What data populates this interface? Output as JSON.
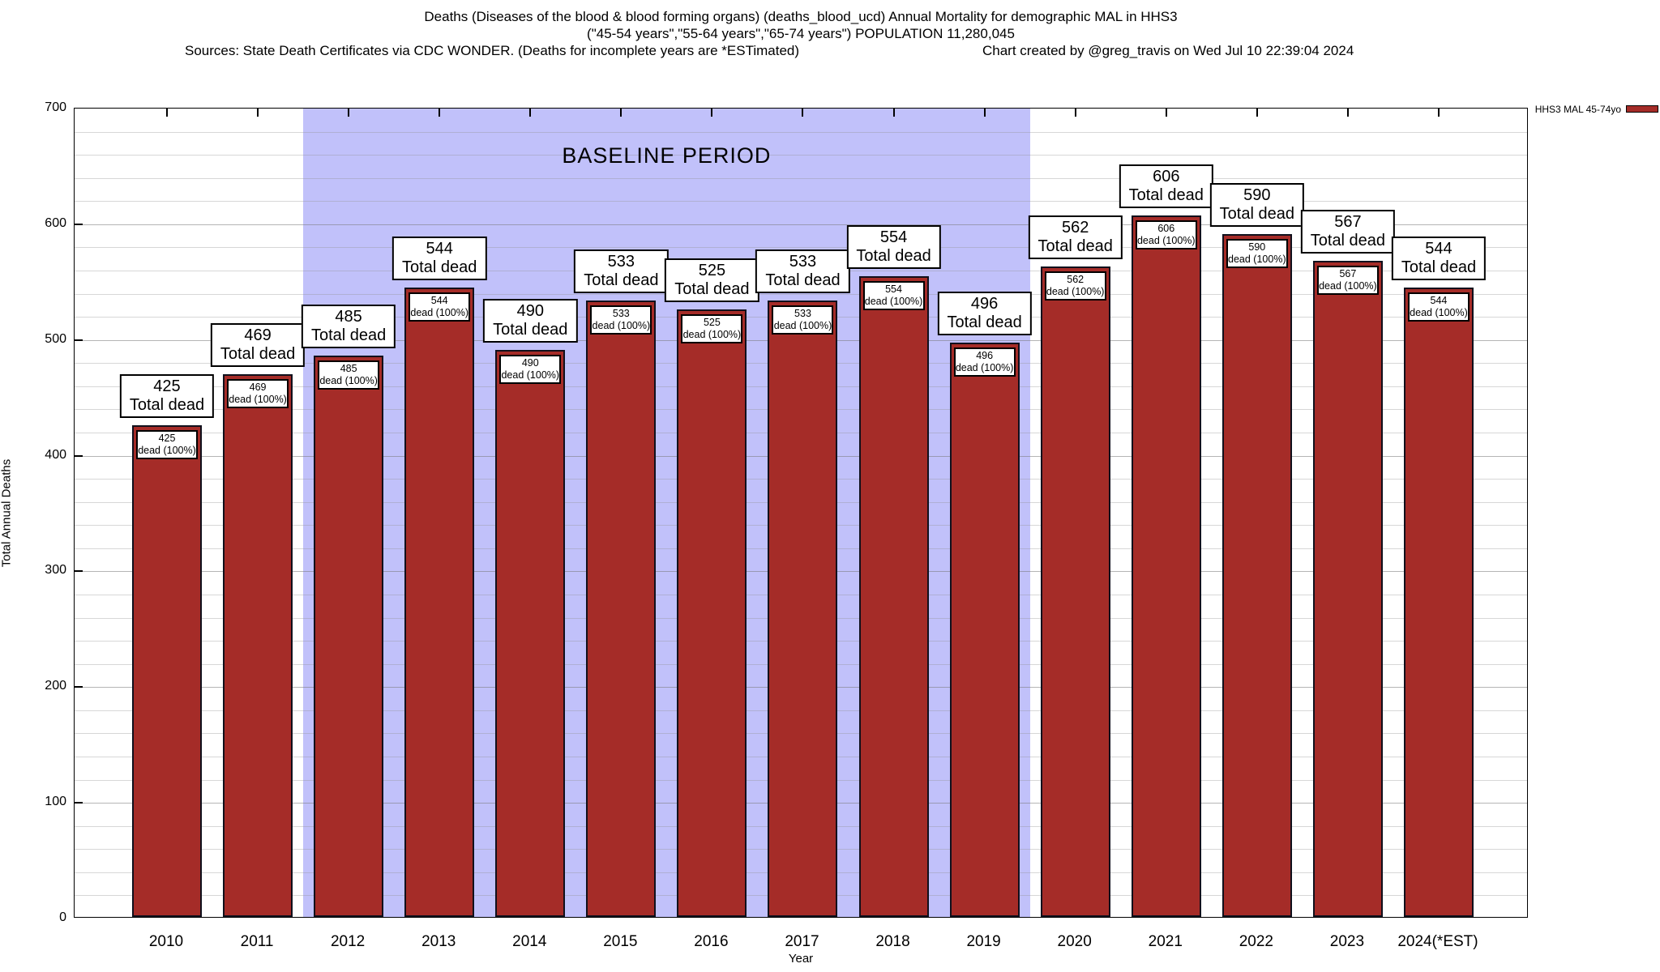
{
  "title": {
    "line1": "Deaths (Diseases of the blood & blood forming organs) (deaths_blood_ucd) Annual Mortality for demographic MAL in HHS3",
    "line2": "(\"45-54 years\",\"55-64 years\",\"65-74 years\") POPULATION 11,280,045",
    "sources": "Sources: State Death Certificates via CDC WONDER. (Deaths for incomplete years are *ESTimated)",
    "credit": "Chart created by @greg_travis on Wed Jul 10 22:39:04 2024"
  },
  "legend": {
    "label": "HHS3 MAL 45-74yo"
  },
  "axes": {
    "x_label": "Year",
    "y_label": "Total Annual Deaths"
  },
  "chart_data": {
    "type": "bar",
    "title": "Deaths (Diseases of the blood & blood forming organs) Annual Mortality for demographic MAL in HHS3",
    "xlabel": "Year",
    "ylabel": "Total Annual Deaths",
    "ylim": [
      0,
      700
    ],
    "y_major_interval": 100,
    "y_minor_interval": 20,
    "grid": true,
    "legend_position": "top-right-outside",
    "categories": [
      "2010",
      "2011",
      "2012",
      "2013",
      "2014",
      "2015",
      "2016",
      "2017",
      "2018",
      "2019",
      "2020",
      "2021",
      "2022",
      "2023",
      "2024(*EST)"
    ],
    "series": [
      {
        "name": "HHS3 MAL 45-74yo",
        "values": [
          425,
          469,
          485,
          544,
          490,
          533,
          525,
          533,
          554,
          496,
          562,
          606,
          590,
          567,
          544
        ]
      }
    ],
    "bar_top_label_suffix": "Total dead",
    "bar_inner_label_suffix": "dead (100%)",
    "baseline_period": {
      "label": "BASELINE PERIOD",
      "from_category_index": 2,
      "to_category_index": 9
    },
    "colors": {
      "bar_fill": "#a52c28",
      "bar_border": "#10101c",
      "baseline_region": "#bcbcfa",
      "grid": "#c8c8c8",
      "axis": "#000000",
      "label_box_bg": "#ffffff"
    }
  }
}
